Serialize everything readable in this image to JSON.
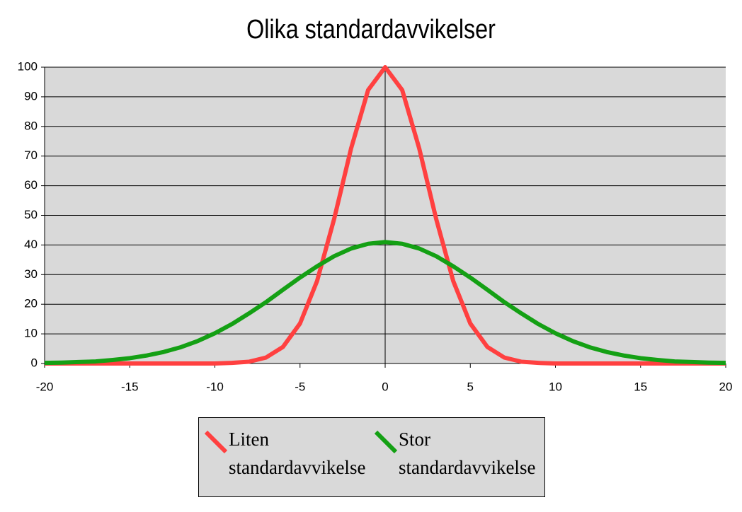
{
  "chart_data": {
    "type": "line",
    "title": "Olika standardavvikelser",
    "x": [
      -20,
      -19,
      -18,
      -17,
      -16,
      -15,
      -14,
      -13,
      -12,
      -11,
      -10,
      -9,
      -8,
      -7,
      -6,
      -5,
      -4,
      -3,
      -2,
      -1,
      0,
      1,
      2,
      3,
      4,
      5,
      6,
      7,
      8,
      9,
      10,
      11,
      12,
      13,
      14,
      15,
      16,
      17,
      18,
      19,
      20
    ],
    "series": [
      {
        "name": "Liten standardavvikelse",
        "color": "#ff4040",
        "values": [
          0,
          0,
          0,
          0,
          0,
          0,
          0,
          0,
          0,
          0,
          0,
          0.2,
          0.6,
          2.0,
          5.6,
          13.5,
          27.8,
          48.7,
          72.6,
          92.3,
          100,
          92.3,
          72.6,
          48.7,
          27.8,
          13.5,
          5.6,
          2.0,
          0.6,
          0.2,
          0,
          0,
          0,
          0,
          0,
          0,
          0,
          0,
          0,
          0,
          0
        ]
      },
      {
        "name": "Stor standardavvikelse",
        "color": "#14a014",
        "values": [
          0.2,
          0.3,
          0.5,
          0.7,
          1.2,
          1.8,
          2.7,
          3.9,
          5.5,
          7.6,
          10.2,
          13.3,
          16.9,
          20.7,
          24.9,
          29.0,
          32.8,
          36.2,
          38.8,
          40.4,
          41,
          40.4,
          38.8,
          36.2,
          32.8,
          29.0,
          24.9,
          20.7,
          16.9,
          13.3,
          10.2,
          7.6,
          5.5,
          3.9,
          2.7,
          1.8,
          1.2,
          0.7,
          0.5,
          0.3,
          0.2
        ]
      }
    ],
    "xlim": [
      -20,
      20
    ],
    "xticks": [
      -20,
      -15,
      -10,
      -5,
      0,
      5,
      10,
      15,
      20
    ],
    "ylim": [
      0,
      100
    ],
    "yticks": [
      0,
      10,
      20,
      30,
      40,
      50,
      60,
      70,
      80,
      90,
      100
    ],
    "grid": true,
    "legend": "bottom"
  }
}
